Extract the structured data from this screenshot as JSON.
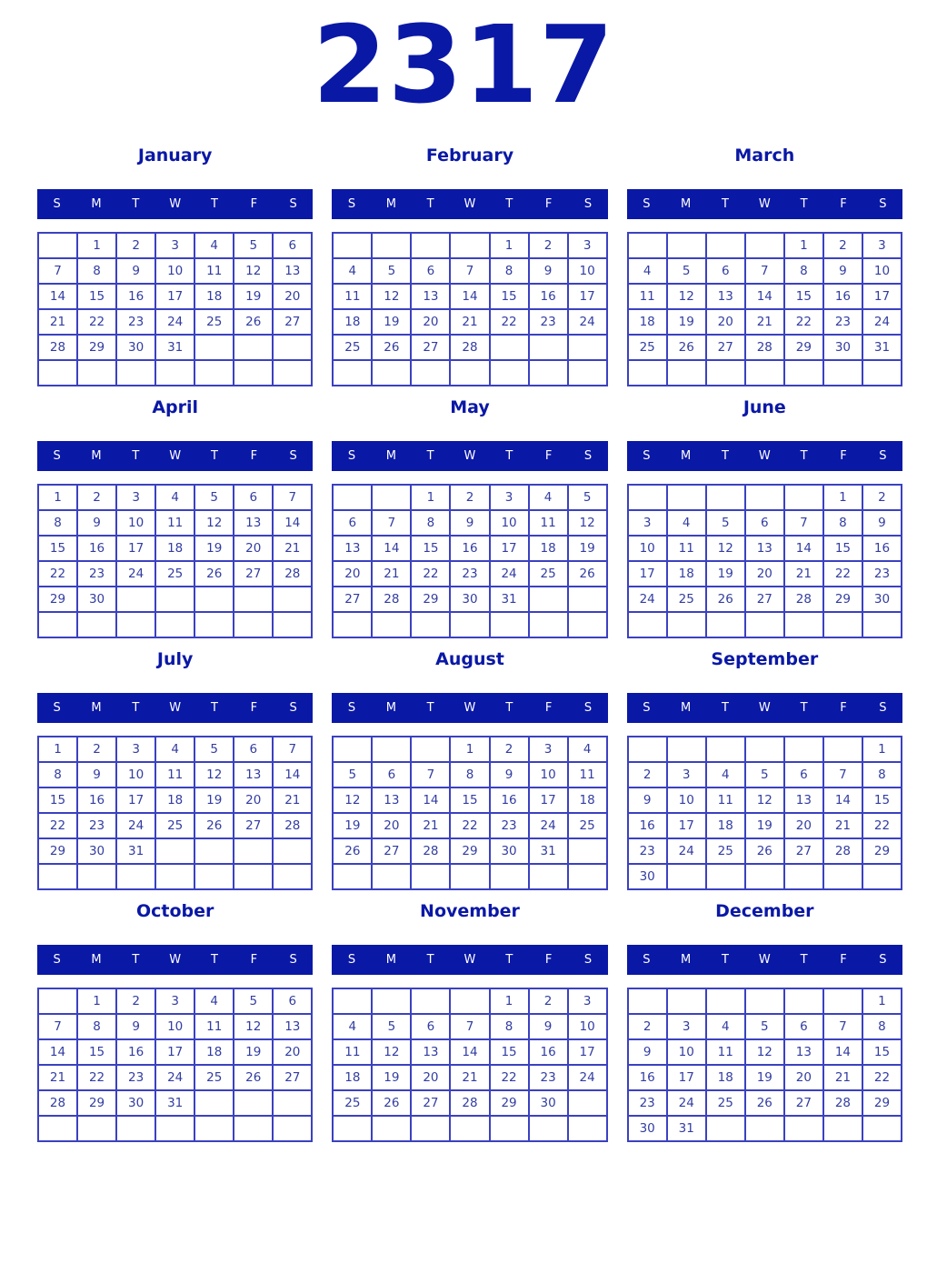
{
  "year": "2317",
  "colors": {
    "navy": "#0a18a6",
    "date_number_blue": "#323da2",
    "grid_border_blue": "#3b41c0",
    "band_text": "#ffffff",
    "background": "#ffffff"
  },
  "day_headers": [
    "S",
    "M",
    "T",
    "W",
    "T",
    "F",
    "S"
  ],
  "months": [
    {
      "name": "January",
      "weeks": [
        [
          "",
          "1",
          "2",
          "3",
          "4",
          "5",
          "6"
        ],
        [
          "7",
          "8",
          "9",
          "10",
          "11",
          "12",
          "13"
        ],
        [
          "14",
          "15",
          "16",
          "17",
          "18",
          "19",
          "20"
        ],
        [
          "21",
          "22",
          "23",
          "24",
          "25",
          "26",
          "27"
        ],
        [
          "28",
          "29",
          "30",
          "31",
          "",
          "",
          ""
        ],
        [
          "",
          "",
          "",
          "",
          "",
          "",
          ""
        ]
      ]
    },
    {
      "name": "February",
      "weeks": [
        [
          "",
          "",
          "",
          "",
          "1",
          "2",
          "3"
        ],
        [
          "4",
          "5",
          "6",
          "7",
          "8",
          "9",
          "10"
        ],
        [
          "11",
          "12",
          "13",
          "14",
          "15",
          "16",
          "17"
        ],
        [
          "18",
          "19",
          "20",
          "21",
          "22",
          "23",
          "24"
        ],
        [
          "25",
          "26",
          "27",
          "28",
          "",
          "",
          ""
        ],
        [
          "",
          "",
          "",
          "",
          "",
          "",
          ""
        ]
      ]
    },
    {
      "name": "March",
      "weeks": [
        [
          "",
          "",
          "",
          "",
          "1",
          "2",
          "3"
        ],
        [
          "4",
          "5",
          "6",
          "7",
          "8",
          "9",
          "10"
        ],
        [
          "11",
          "12",
          "13",
          "14",
          "15",
          "16",
          "17"
        ],
        [
          "18",
          "19",
          "20",
          "21",
          "22",
          "23",
          "24"
        ],
        [
          "25",
          "26",
          "27",
          "28",
          "29",
          "30",
          "31"
        ],
        [
          "",
          "",
          "",
          "",
          "",
          "",
          ""
        ]
      ]
    },
    {
      "name": "April",
      "weeks": [
        [
          "1",
          "2",
          "3",
          "4",
          "5",
          "6",
          "7"
        ],
        [
          "8",
          "9",
          "10",
          "11",
          "12",
          "13",
          "14"
        ],
        [
          "15",
          "16",
          "17",
          "18",
          "19",
          "20",
          "21"
        ],
        [
          "22",
          "23",
          "24",
          "25",
          "26",
          "27",
          "28"
        ],
        [
          "29",
          "30",
          "",
          "",
          "",
          "",
          ""
        ],
        [
          "",
          "",
          "",
          "",
          "",
          "",
          ""
        ]
      ]
    },
    {
      "name": "May",
      "weeks": [
        [
          "",
          "",
          "1",
          "2",
          "3",
          "4",
          "5"
        ],
        [
          "6",
          "7",
          "8",
          "9",
          "10",
          "11",
          "12"
        ],
        [
          "13",
          "14",
          "15",
          "16",
          "17",
          "18",
          "19"
        ],
        [
          "20",
          "21",
          "22",
          "23",
          "24",
          "25",
          "26"
        ],
        [
          "27",
          "28",
          "29",
          "30",
          "31",
          "",
          ""
        ],
        [
          "",
          "",
          "",
          "",
          "",
          "",
          ""
        ]
      ]
    },
    {
      "name": "June",
      "weeks": [
        [
          "",
          "",
          "",
          "",
          "",
          "1",
          "2"
        ],
        [
          "3",
          "4",
          "5",
          "6",
          "7",
          "8",
          "9"
        ],
        [
          "10",
          "11",
          "12",
          "13",
          "14",
          "15",
          "16"
        ],
        [
          "17",
          "18",
          "19",
          "20",
          "21",
          "22",
          "23"
        ],
        [
          "24",
          "25",
          "26",
          "27",
          "28",
          "29",
          "30"
        ],
        [
          "",
          "",
          "",
          "",
          "",
          "",
          ""
        ]
      ]
    },
    {
      "name": "July",
      "weeks": [
        [
          "1",
          "2",
          "3",
          "4",
          "5",
          "6",
          "7"
        ],
        [
          "8",
          "9",
          "10",
          "11",
          "12",
          "13",
          "14"
        ],
        [
          "15",
          "16",
          "17",
          "18",
          "19",
          "20",
          "21"
        ],
        [
          "22",
          "23",
          "24",
          "25",
          "26",
          "27",
          "28"
        ],
        [
          "29",
          "30",
          "31",
          "",
          "",
          "",
          ""
        ],
        [
          "",
          "",
          "",
          "",
          "",
          "",
          ""
        ]
      ]
    },
    {
      "name": "August",
      "weeks": [
        [
          "",
          "",
          "",
          "1",
          "2",
          "3",
          "4"
        ],
        [
          "5",
          "6",
          "7",
          "8",
          "9",
          "10",
          "11"
        ],
        [
          "12",
          "13",
          "14",
          "15",
          "16",
          "17",
          "18"
        ],
        [
          "19",
          "20",
          "21",
          "22",
          "23",
          "24",
          "25"
        ],
        [
          "26",
          "27",
          "28",
          "29",
          "30",
          "31",
          ""
        ],
        [
          "",
          "",
          "",
          "",
          "",
          "",
          ""
        ]
      ]
    },
    {
      "name": "September",
      "weeks": [
        [
          "",
          "",
          "",
          "",
          "",
          "",
          "1"
        ],
        [
          "2",
          "3",
          "4",
          "5",
          "6",
          "7",
          "8"
        ],
        [
          "9",
          "10",
          "11",
          "12",
          "13",
          "14",
          "15"
        ],
        [
          "16",
          "17",
          "18",
          "19",
          "20",
          "21",
          "22"
        ],
        [
          "23",
          "24",
          "25",
          "26",
          "27",
          "28",
          "29"
        ],
        [
          "30",
          "",
          "",
          "",
          "",
          "",
          ""
        ]
      ]
    },
    {
      "name": "October",
      "weeks": [
        [
          "",
          "1",
          "2",
          "3",
          "4",
          "5",
          "6"
        ],
        [
          "7",
          "8",
          "9",
          "10",
          "11",
          "12",
          "13"
        ],
        [
          "14",
          "15",
          "16",
          "17",
          "18",
          "19",
          "20"
        ],
        [
          "21",
          "22",
          "23",
          "24",
          "25",
          "26",
          "27"
        ],
        [
          "28",
          "29",
          "30",
          "31",
          "",
          "",
          ""
        ],
        [
          "",
          "",
          "",
          "",
          "",
          "",
          ""
        ]
      ]
    },
    {
      "name": "November",
      "weeks": [
        [
          "",
          "",
          "",
          "",
          "1",
          "2",
          "3"
        ],
        [
          "4",
          "5",
          "6",
          "7",
          "8",
          "9",
          "10"
        ],
        [
          "11",
          "12",
          "13",
          "14",
          "15",
          "16",
          "17"
        ],
        [
          "18",
          "19",
          "20",
          "21",
          "22",
          "23",
          "24"
        ],
        [
          "25",
          "26",
          "27",
          "28",
          "29",
          "30",
          ""
        ],
        [
          "",
          "",
          "",
          "",
          "",
          "",
          ""
        ]
      ]
    },
    {
      "name": "December",
      "weeks": [
        [
          "",
          "",
          "",
          "",
          "",
          "",
          "1"
        ],
        [
          "2",
          "3",
          "4",
          "5",
          "6",
          "7",
          "8"
        ],
        [
          "9",
          "10",
          "11",
          "12",
          "13",
          "14",
          "15"
        ],
        [
          "16",
          "17",
          "18",
          "19",
          "20",
          "21",
          "22"
        ],
        [
          "23",
          "24",
          "25",
          "26",
          "27",
          "28",
          "29"
        ],
        [
          "30",
          "31",
          "",
          "",
          "",
          "",
          ""
        ]
      ]
    }
  ]
}
